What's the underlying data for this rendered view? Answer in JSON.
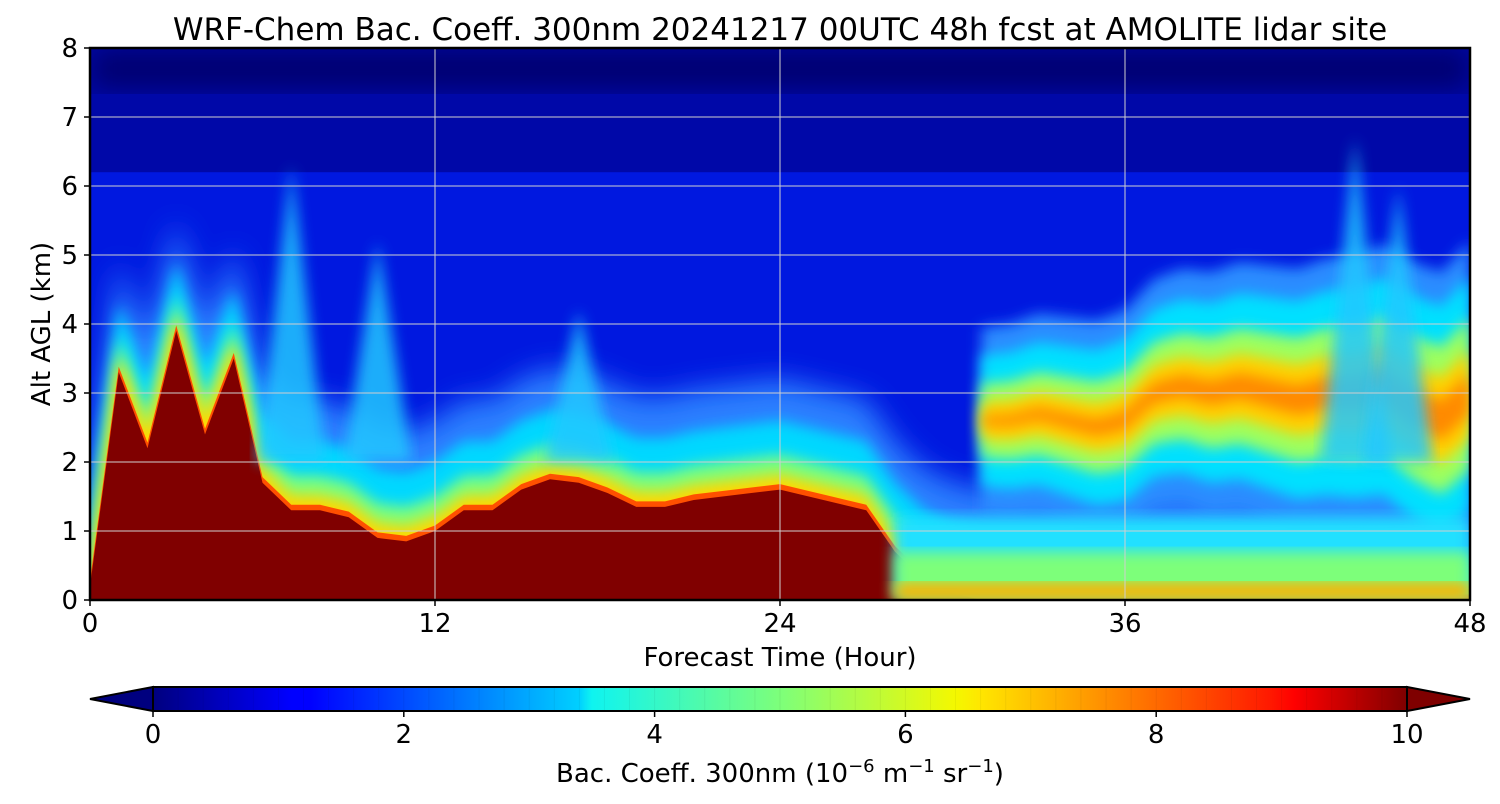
{
  "chart_data": {
    "type": "heatmap",
    "title": "WRF-Chem Bac. Coeff. 300nm  20241217 00UTC 48h fcst at AMOLITE lidar site",
    "xlabel": "Forecast Time (Hour)",
    "ylabel": "Alt AGL (km)",
    "xlim": [
      0,
      48
    ],
    "ylim": [
      0,
      8
    ],
    "x_ticks": [
      0,
      12,
      24,
      36,
      48
    ],
    "y_ticks": [
      0,
      1,
      2,
      3,
      4,
      5,
      6,
      7,
      8
    ],
    "grid": true,
    "colormap": "jet",
    "colorbar": {
      "label_main": "Bac. Coeff. 300nm  (10",
      "label_exp1": "−6",
      "label_mid": " m",
      "label_exp2": "−1",
      "label_mid2": " sr",
      "label_exp3": "−1",
      "label_end": ")",
      "range": [
        0,
        10
      ],
      "ticks": [
        0,
        2,
        4,
        6,
        8,
        10
      ],
      "extend": "both",
      "placement": "bottom"
    },
    "hours": [
      0,
      1,
      2,
      3,
      4,
      5,
      6,
      7,
      8,
      9,
      10,
      11,
      12,
      13,
      14,
      15,
      16,
      17,
      18,
      19,
      20,
      21,
      22,
      23,
      24,
      25,
      26,
      27,
      28,
      29,
      30,
      31,
      32,
      33,
      34,
      35,
      36,
      37,
      38,
      39,
      40,
      41,
      42,
      43,
      44,
      45,
      46,
      47,
      48
    ],
    "layers": [
      {
        "name": "boundary_layer_top_km",
        "values": [
          0.2,
          3.3,
          2.2,
          3.9,
          2.4,
          3.5,
          1.7,
          1.3,
          1.3,
          1.2,
          0.9,
          0.85,
          1.0,
          1.3,
          1.3,
          1.6,
          1.75,
          1.7,
          1.55,
          1.35,
          1.35,
          1.45,
          1.5,
          1.55,
          1.6,
          1.5,
          1.4,
          1.3,
          0.7,
          0.3,
          0.1,
          0,
          0,
          0,
          0,
          0,
          0,
          0,
          0,
          0,
          0,
          0,
          0,
          0,
          0,
          0,
          0,
          0,
          0
        ]
      },
      {
        "name": "upper_aerosol_layer_center_km",
        "values": [
          0,
          0,
          0,
          0,
          0,
          0,
          0,
          0,
          0,
          0,
          0,
          0,
          0,
          0,
          0,
          0,
          0,
          0,
          0,
          0,
          0,
          0,
          0,
          0,
          0,
          0,
          0,
          0,
          0,
          0,
          0,
          2.6,
          2.6,
          2.7,
          2.6,
          2.5,
          2.6,
          3.0,
          3.1,
          3.0,
          3.1,
          3.0,
          2.9,
          3.0,
          3.0,
          3.1,
          2.8,
          2.6,
          3.0
        ]
      }
    ]
  }
}
